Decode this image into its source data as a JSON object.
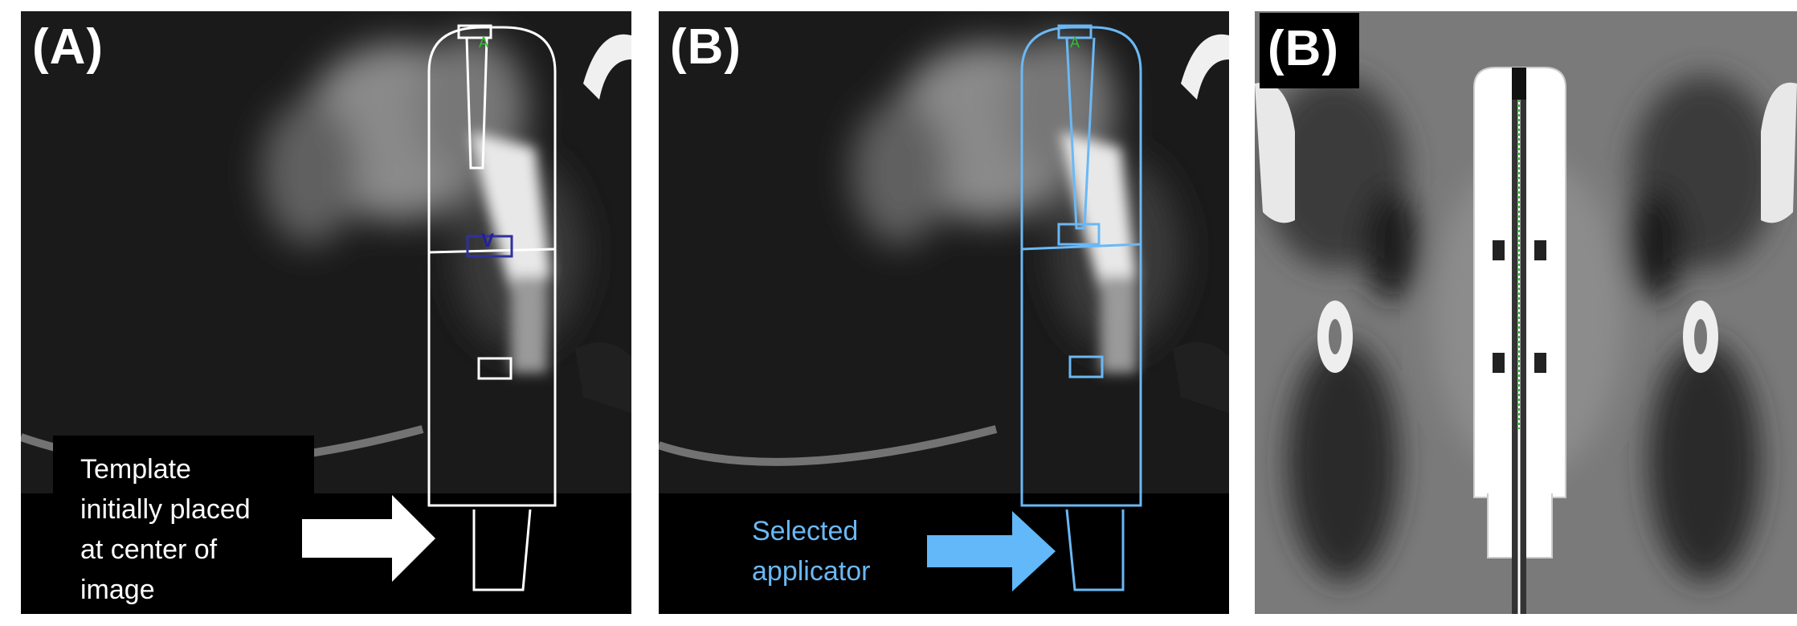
{
  "panels": {
    "a": {
      "label": "(A)",
      "caption_lines": [
        "Template",
        "initially placed",
        "at center of",
        "image"
      ],
      "overlay_color": "#ffffff",
      "arrow_color": "#ffffff"
    },
    "b": {
      "label": "(B)",
      "caption_lines": [
        "Selected",
        "applicator"
      ],
      "overlay_color": "#6ab8f5",
      "arrow_color": "#62b8f8"
    },
    "c": {
      "label": "(B)",
      "overlay_color": "#ffffff"
    }
  }
}
